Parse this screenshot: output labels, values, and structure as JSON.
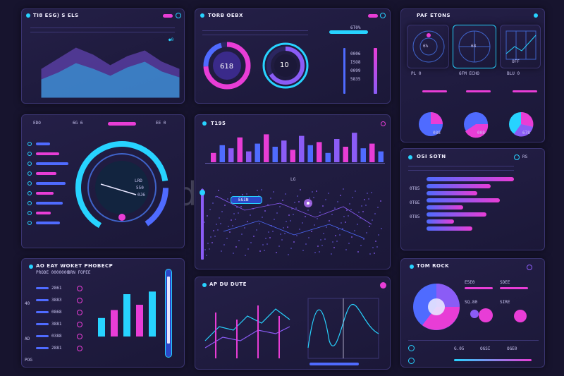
{
  "panel1": {
    "title": "TI8 ESG) S ELS",
    "status": "●0"
  },
  "panel2": {
    "title": "TORB OEBX",
    "gauge1": "618",
    "gauge2": "10",
    "pct": "6T0%",
    "rows": [
      "0006",
      "ISO8",
      "0099",
      "5835"
    ]
  },
  "panel3": {
    "title": "PAF ETONS",
    "rows": [
      [
        "PL 0",
        "6FM ECHO"
      ],
      [
        "BLU 0",
        "LIN"
      ],
      [
        "BEED",
        "0BS"
      ]
    ],
    "vals": [
      "6%",
      "68",
      "OFF"
    ],
    "pies": [
      "088",
      "008",
      "678"
    ]
  },
  "panel4": {
    "codes": [
      "EDO",
      "6G 6",
      "EE 0"
    ],
    "ticks": [
      "LRD",
      "550",
      "0J6"
    ]
  },
  "panel5": {
    "title": "T195",
    "mid": "LG",
    "callout": "EGIN"
  },
  "panel6": {
    "title": "OSI SOTN",
    "badge": "RS",
    "rows": [
      "0T85",
      "0T6E",
      "0T85"
    ]
  },
  "panel7": {
    "title": "AO EAY WOKET PHOBECP",
    "sub1": "PRODE 0000000",
    "sub2": "BRN FOPEE",
    "rows": [
      "2861",
      "3883",
      "0868",
      "3881",
      "0388",
      "2881"
    ],
    "codes": [
      "40",
      "AD",
      "POG"
    ]
  },
  "panel8": {
    "title": "AP DU DUTE"
  },
  "panel9": {
    "title": "TOM ROCK",
    "legend": [
      "E5E0",
      "SDEE",
      "SQ.80",
      "SIRE"
    ],
    "foot": [
      "G.05",
      "OGSI",
      "OGE0"
    ]
  },
  "watermark": "dreamstime",
  "colors": {
    "cyan": "#27d3ff",
    "magenta": "#e83dd6",
    "violet": "#8b5cf6",
    "blue": "#4f6bff",
    "bg": "#17142e"
  },
  "chart_data": [
    {
      "type": "area",
      "series": [
        {
          "values": [
            40,
            55,
            70,
            60,
            45,
            58,
            66,
            50,
            40
          ]
        },
        {
          "values": [
            25,
            35,
            48,
            40,
            30,
            42,
            50,
            36,
            28
          ]
        }
      ]
    },
    {
      "type": "bar",
      "values": [
        30,
        55,
        45,
        80,
        35,
        60,
        90,
        50,
        70,
        40,
        85,
        55,
        65,
        30,
        75,
        50,
        95,
        45,
        60,
        35
      ]
    },
    {
      "type": "bar",
      "values": [
        35,
        50,
        80,
        60,
        85
      ]
    },
    {
      "type": "bar",
      "values": [
        95,
        70,
        55,
        80,
        40,
        65,
        30,
        50
      ]
    },
    {
      "type": "pie",
      "values": [
        40,
        25,
        20,
        15
      ]
    }
  ]
}
